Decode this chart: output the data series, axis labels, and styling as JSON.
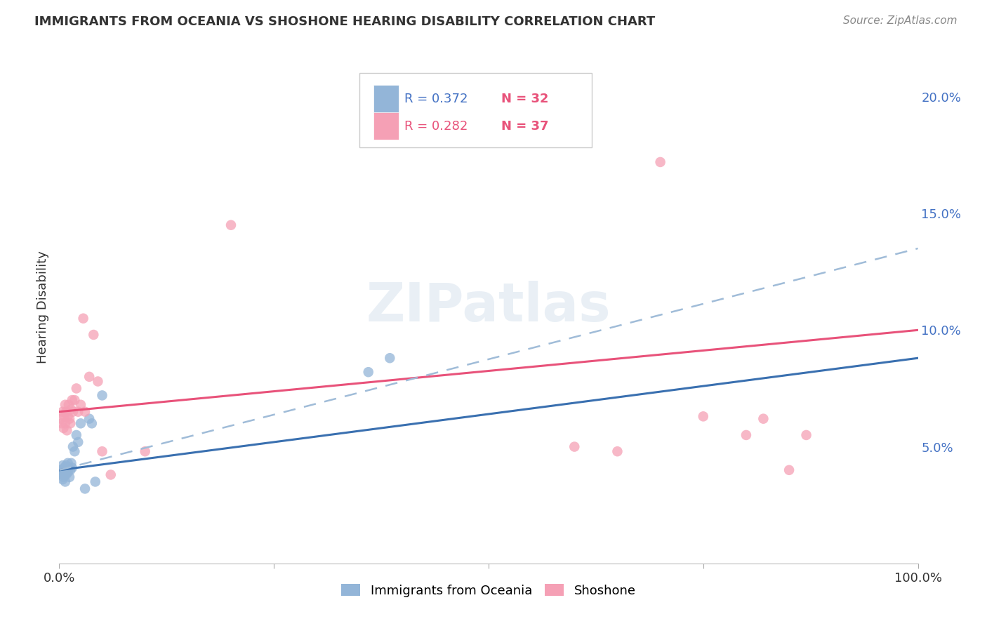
{
  "title": "IMMIGRANTS FROM OCEANIA VS SHOSHONE HEARING DISABILITY CORRELATION CHART",
  "source": "Source: ZipAtlas.com",
  "ylabel": "Hearing Disability",
  "xmin": 0.0,
  "xmax": 1.0,
  "ymin": 0.0,
  "ymax": 0.22,
  "yticks": [
    0.05,
    0.1,
    0.15,
    0.2
  ],
  "ytick_labels": [
    "5.0%",
    "10.0%",
    "15.0%",
    "20.0%"
  ],
  "xticks": [
    0.0,
    0.25,
    0.5,
    0.75,
    1.0
  ],
  "xtick_labels": [
    "0.0%",
    "",
    "",
    "",
    "100.0%"
  ],
  "legend1_r": "R = 0.372",
  "legend1_n": "N = 32",
  "legend2_r": "R = 0.282",
  "legend2_n": "N = 37",
  "blue_color": "#93b5d8",
  "pink_color": "#f5a0b5",
  "blue_line_color": "#3a70b0",
  "pink_line_color": "#e8527a",
  "dashed_line_color": "#a0bcd8",
  "watermark_color": "#c8d8e8",
  "blue_line_x0": 0.0,
  "blue_line_y0": 0.04,
  "blue_line_x1": 1.0,
  "blue_line_y1": 0.088,
  "pink_line_x0": 0.0,
  "pink_line_y0": 0.065,
  "pink_line_x1": 1.0,
  "pink_line_y1": 0.1,
  "dash_line_x0": 0.0,
  "dash_line_y0": 0.04,
  "dash_line_x1": 1.0,
  "dash_line_y1": 0.135,
  "blue_x": [
    0.002,
    0.003,
    0.004,
    0.004,
    0.005,
    0.005,
    0.006,
    0.006,
    0.007,
    0.007,
    0.008,
    0.008,
    0.009,
    0.01,
    0.01,
    0.011,
    0.012,
    0.013,
    0.014,
    0.015,
    0.016,
    0.018,
    0.02,
    0.022,
    0.025,
    0.03,
    0.035,
    0.038,
    0.042,
    0.05,
    0.36,
    0.385
  ],
  "blue_y": [
    0.04,
    0.038,
    0.042,
    0.036,
    0.039,
    0.037,
    0.041,
    0.038,
    0.04,
    0.035,
    0.042,
    0.038,
    0.04,
    0.039,
    0.043,
    0.041,
    0.037,
    0.04,
    0.043,
    0.041,
    0.05,
    0.048,
    0.055,
    0.052,
    0.06,
    0.032,
    0.062,
    0.06,
    0.035,
    0.072,
    0.082,
    0.088
  ],
  "pink_x": [
    0.002,
    0.003,
    0.004,
    0.005,
    0.006,
    0.007,
    0.007,
    0.008,
    0.009,
    0.01,
    0.011,
    0.012,
    0.013,
    0.014,
    0.015,
    0.016,
    0.018,
    0.02,
    0.022,
    0.025,
    0.028,
    0.03,
    0.035,
    0.04,
    0.045,
    0.05,
    0.06,
    0.1,
    0.2,
    0.6,
    0.65,
    0.7,
    0.75,
    0.8,
    0.82,
    0.85,
    0.87
  ],
  "pink_y": [
    0.062,
    0.06,
    0.065,
    0.058,
    0.063,
    0.06,
    0.068,
    0.065,
    0.057,
    0.063,
    0.068,
    0.062,
    0.06,
    0.066,
    0.07,
    0.065,
    0.07,
    0.075,
    0.065,
    0.068,
    0.105,
    0.065,
    0.08,
    0.098,
    0.078,
    0.048,
    0.038,
    0.048,
    0.145,
    0.05,
    0.048,
    0.172,
    0.063,
    0.055,
    0.062,
    0.04,
    0.055
  ]
}
